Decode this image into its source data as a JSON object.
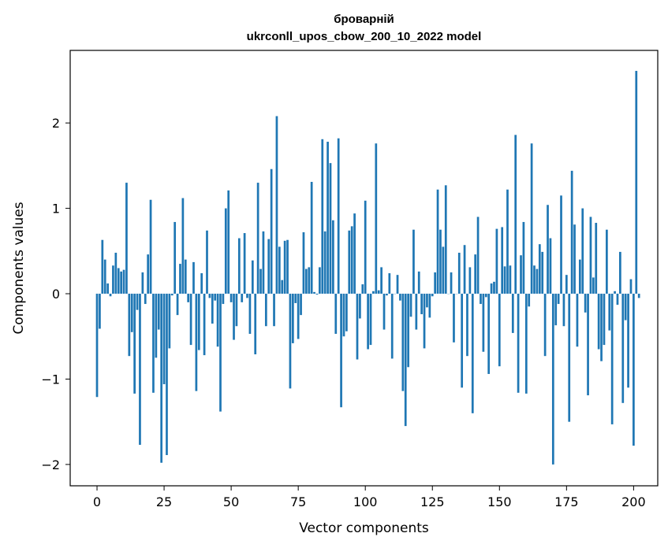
{
  "chart_data": {
    "type": "bar",
    "title_line1": "броварній",
    "title_line2": "ukrconll_upos_cbow_200_10_2022 model",
    "xlabel": "Vector components",
    "ylabel": "Components values",
    "xlim": [
      -10,
      209
    ],
    "ylim": [
      -2.25,
      2.85
    ],
    "xticks": [
      0,
      25,
      50,
      75,
      100,
      125,
      150,
      175,
      200
    ],
    "yticks": [
      -2,
      -1,
      0,
      1,
      2
    ],
    "ytick_labels": [
      "−2",
      "−1",
      "0",
      "1",
      "2"
    ],
    "bar_color": "#1f77b4",
    "grid": false,
    "values": [
      -1.21,
      -0.41,
      0.63,
      0.4,
      0.12,
      -0.03,
      0.33,
      0.48,
      0.3,
      0.26,
      0.28,
      1.3,
      -0.73,
      -0.45,
      -1.17,
      -0.19,
      -1.77,
      0.25,
      -0.12,
      0.46,
      1.1,
      -1.16,
      -0.75,
      -0.42,
      -1.98,
      -1.06,
      -1.89,
      -0.64,
      -0.02,
      0.84,
      -0.25,
      0.35,
      1.12,
      0.4,
      -0.1,
      -0.6,
      0.37,
      -1.14,
      -0.66,
      0.24,
      -0.72,
      0.74,
      -0.05,
      -0.35,
      -0.08,
      -0.62,
      -1.38,
      -0.12,
      1.0,
      1.21,
      -0.1,
      -0.54,
      -0.38,
      0.65,
      -0.1,
      0.71,
      -0.05,
      -0.47,
      0.39,
      -0.71,
      1.3,
      0.29,
      0.73,
      -0.38,
      0.64,
      1.46,
      -0.38,
      2.08,
      0.55,
      0.16,
      0.62,
      0.63,
      -1.11,
      -0.58,
      -0.11,
      -0.53,
      -0.25,
      0.72,
      0.29,
      0.31,
      1.31,
      0.02,
      -0.01,
      0.31,
      1.81,
      0.73,
      1.78,
      1.53,
      0.86,
      -0.47,
      1.82,
      -1.33,
      -0.5,
      -0.44,
      0.74,
      0.79,
      0.94,
      -0.77,
      -0.29,
      0.11,
      1.09,
      -0.65,
      -0.6,
      0.03,
      1.76,
      0.04,
      0.31,
      -0.42,
      -0.02,
      0.24,
      -0.76,
      0.0,
      0.22,
      -0.08,
      -1.14,
      -1.55,
      -0.86,
      -0.27,
      0.75,
      -0.42,
      0.26,
      -0.24,
      -0.64,
      -0.16,
      -0.28,
      -0.03,
      0.25,
      1.22,
      0.75,
      0.55,
      1.27,
      0.0,
      0.25,
      -0.57,
      0.0,
      0.48,
      -1.1,
      0.57,
      -0.73,
      0.31,
      -1.4,
      0.46,
      0.9,
      -0.12,
      -0.68,
      -0.04,
      -0.94,
      0.12,
      0.14,
      0.76,
      -0.85,
      0.78,
      0.32,
      1.22,
      0.33,
      -0.46,
      1.86,
      -1.16,
      0.45,
      0.84,
      -1.17,
      -0.15,
      1.76,
      0.33,
      0.29,
      0.58,
      0.49,
      -0.73,
      1.04,
      0.65,
      -2.0,
      -0.37,
      -0.12,
      1.15,
      -0.38,
      0.22,
      -1.5,
      1.44,
      0.81,
      -0.62,
      0.4,
      1.0,
      -0.22,
      -1.19,
      0.9,
      0.19,
      0.83,
      -0.65,
      -0.79,
      -0.6,
      0.75,
      -0.43,
      -1.53,
      0.03,
      -0.13,
      0.49,
      -1.28,
      -0.31,
      -1.1,
      0.17,
      -1.78,
      2.61,
      -0.05
    ]
  }
}
